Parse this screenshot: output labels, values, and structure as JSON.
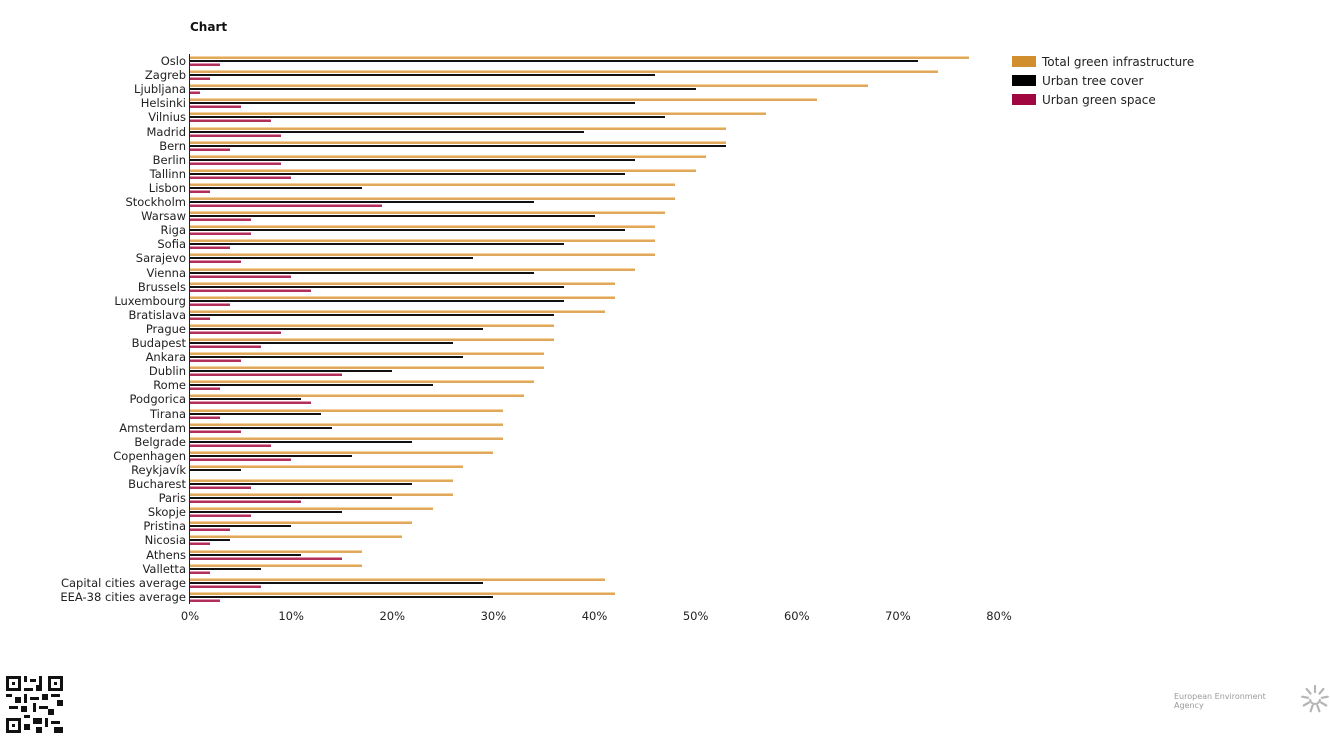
{
  "page": {
    "title": "Chart",
    "footer": {
      "agency_name": "European Environment Agency",
      "qr_icon": "qr-code-icon",
      "logo_icon": "eea-sun-logo-icon"
    }
  },
  "legend": [
    {
      "label": "Total green infrastructure",
      "color": "#d18e2e"
    },
    {
      "label": "Urban tree cover",
      "color": "#000000"
    },
    {
      "label": "Urban green space",
      "color": "#a0063f"
    }
  ],
  "x_ticks": [
    "0%",
    "10%",
    "20%",
    "30%",
    "40%",
    "50%",
    "60%",
    "70%",
    "80%"
  ],
  "chart_data": {
    "type": "bar",
    "orientation": "horizontal",
    "title": "Chart",
    "xlabel": "",
    "ylabel": "",
    "xlim": [
      0,
      80
    ],
    "x_unit": "%",
    "grid": false,
    "legend_position": "right-top",
    "categories": [
      "Oslo",
      "Zagreb",
      "Ljubljana",
      "Helsinki",
      "Vilnius",
      "Madrid",
      "Bern",
      "Berlin",
      "Tallinn",
      "Lisbon",
      "Stockholm",
      "Warsaw",
      "Riga",
      "Sofia",
      "Sarajevo",
      "Vienna",
      "Brussels",
      "Luxembourg",
      "Bratislava",
      "Prague",
      "Budapest",
      "Ankara",
      "Dublin",
      "Rome",
      "Podgorica",
      "Tirana",
      "Amsterdam",
      "Belgrade",
      "Copenhagen",
      "Reykjavík",
      "Bucharest",
      "Paris",
      "Skopje",
      "Pristina",
      "Nicosia",
      "Athens",
      "Valletta",
      "Capital cities average",
      "EEA-38 cities average"
    ],
    "series": [
      {
        "name": "Total green infrastructure",
        "color": "#d18e2e",
        "values": [
          77,
          74,
          67,
          62,
          57,
          53,
          53,
          51,
          50,
          48,
          48,
          47,
          46,
          46,
          46,
          44,
          42,
          42,
          41,
          36,
          36,
          35,
          35,
          34,
          33,
          31,
          31,
          31,
          30,
          27,
          26,
          26,
          24,
          22,
          21,
          17,
          17,
          41,
          42
        ]
      },
      {
        "name": "Urban tree cover",
        "color": "#000000",
        "values": [
          72,
          46,
          50,
          44,
          47,
          39,
          53,
          44,
          43,
          17,
          34,
          40,
          43,
          37,
          28,
          34,
          37,
          37,
          36,
          29,
          26,
          27,
          20,
          24,
          11,
          13,
          14,
          22,
          16,
          5,
          22,
          20,
          15,
          10,
          4,
          11,
          7,
          29,
          30
        ]
      },
      {
        "name": "Urban green space",
        "color": "#a0063f",
        "values": [
          3,
          2,
          1,
          5,
          8,
          9,
          4,
          9,
          10,
          2,
          19,
          6,
          6,
          4,
          5,
          10,
          12,
          4,
          2,
          9,
          7,
          5,
          15,
          3,
          12,
          3,
          5,
          8,
          10,
          0,
          6,
          11,
          6,
          4,
          2,
          15,
          2,
          7,
          3
        ]
      }
    ]
  }
}
